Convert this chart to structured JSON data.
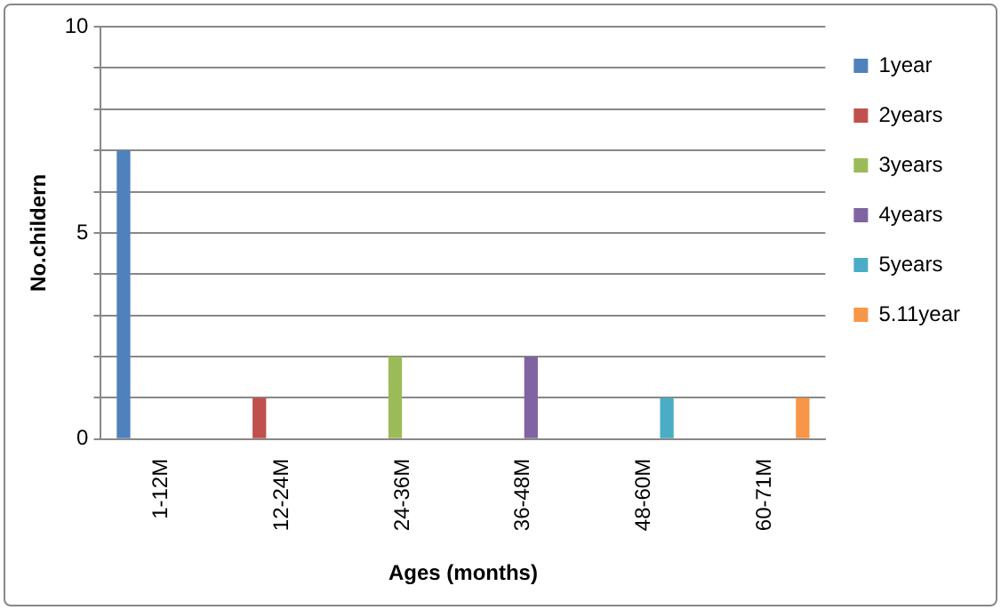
{
  "chart_data": {
    "type": "bar",
    "xlabel": "Ages (months)",
    "ylabel": "No.childern",
    "categories": [
      "1-12M",
      "12-24M",
      "24-36M",
      "36-48M",
      "48-60M",
      "60-71M"
    ],
    "series": [
      {
        "name": "1year",
        "color": "#4f81bd",
        "values": [
          7,
          0,
          0,
          0,
          0,
          0
        ]
      },
      {
        "name": "2years",
        "color": "#c0504d",
        "values": [
          0,
          1,
          0,
          0,
          0,
          0
        ]
      },
      {
        "name": "3years",
        "color": "#9bbb59",
        "values": [
          0,
          0,
          2,
          0,
          0,
          0
        ]
      },
      {
        "name": "4years",
        "color": "#8064a2",
        "values": [
          0,
          0,
          0,
          2,
          0,
          0
        ]
      },
      {
        "name": "5years",
        "color": "#4bacc6",
        "values": [
          0,
          0,
          0,
          0,
          1,
          0
        ]
      },
      {
        "name": "5.11year",
        "color": "#f79646",
        "values": [
          0,
          0,
          0,
          0,
          0,
          1
        ]
      }
    ],
    "ylim": [
      0,
      10
    ],
    "yticks": [
      0,
      {
        "value": 1,
        "label": null
      },
      {
        "value": 2,
        "label": null
      },
      {
        "value": 3,
        "label": null
      },
      {
        "value": 4,
        "label": null
      },
      5,
      {
        "value": 6,
        "label": null
      },
      {
        "value": 7,
        "label": null
      },
      {
        "value": 8,
        "label": null
      },
      {
        "value": 9,
        "label": null
      },
      10
    ],
    "grid": "y",
    "legend": "right"
  }
}
